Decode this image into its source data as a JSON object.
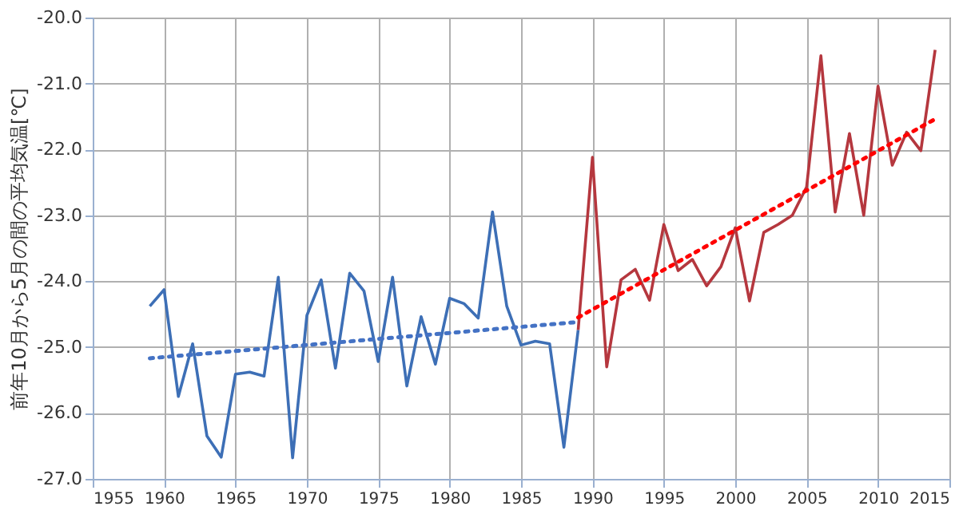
{
  "chart_data": {
    "type": "line",
    "ylabel": "前年10月から5月の間の平均気温[℃]",
    "xlim": [
      1955,
      2015
    ],
    "xticks": [
      1955,
      1960,
      1965,
      1970,
      1975,
      1980,
      1985,
      1990,
      1995,
      2000,
      2005,
      2010,
      2015
    ],
    "ylim": [
      -27,
      -20
    ],
    "yticks": [
      {
        "value": -27,
        "label": "-27.0"
      },
      {
        "value": -26,
        "label": "-26.0"
      },
      {
        "value": -25,
        "label": "-25.0"
      },
      {
        "value": -24,
        "label": "-24.0"
      },
      {
        "value": -23,
        "label": "-23.0"
      },
      {
        "value": -22,
        "label": "-22.0"
      },
      {
        "value": -21,
        "label": "-21.0"
      },
      {
        "value": -20,
        "label": "-20.0"
      }
    ],
    "grid": true,
    "legend": false,
    "marker": "none",
    "series": [
      {
        "color": "#3d6fb6",
        "line_style": "solid",
        "x": [
          1959,
          1960,
          1961,
          1962,
          1963,
          1964,
          1965,
          1966,
          1967,
          1968,
          1969,
          1970,
          1971,
          1972,
          1973,
          1974,
          1975,
          1976,
          1977,
          1978,
          1979,
          1980,
          1981,
          1982,
          1983,
          1984,
          1985,
          1986,
          1987,
          1988,
          1989
        ],
        "values": [
          -24.38,
          -24.13,
          -25.75,
          -24.95,
          -26.35,
          -26.67,
          -25.41,
          -25.38,
          -25.44,
          -23.94,
          -26.68,
          -24.52,
          -23.98,
          -25.32,
          -23.88,
          -24.15,
          -25.22,
          -23.94,
          -25.59,
          -24.54,
          -25.26,
          -24.26,
          -24.34,
          -24.56,
          -22.95,
          -24.38,
          -24.97,
          -24.91,
          -24.95,
          -26.52,
          -24.74
        ]
      },
      {
        "color": "#b5373e",
        "line_style": "solid",
        "x": [
          1989,
          1990,
          1991,
          1992,
          1993,
          1994,
          1995,
          1996,
          1997,
          1998,
          1999,
          2000,
          2001,
          2002,
          2003,
          2004,
          2005,
          2006,
          2007,
          2008,
          2009,
          2010,
          2011,
          2012,
          2013,
          2014
        ],
        "values": [
          -24.74,
          -22.12,
          -25.3,
          -23.98,
          -23.82,
          -24.29,
          -23.14,
          -23.84,
          -23.67,
          -24.07,
          -23.78,
          -23.19,
          -24.3,
          -23.26,
          -23.14,
          -23.0,
          -22.57,
          -20.58,
          -22.95,
          -21.76,
          -23.0,
          -21.04,
          -22.24,
          -21.74,
          -22.02,
          -20.49
        ]
      },
      {
        "color": "#4472c4",
        "line_style": "dotted",
        "x": [
          1959,
          1989
        ],
        "values": [
          -25.17,
          -24.62
        ]
      },
      {
        "color": "#ff0000",
        "line_style": "dotted",
        "x": [
          1989,
          2014
        ],
        "values": [
          -24.55,
          -21.54
        ]
      }
    ]
  }
}
